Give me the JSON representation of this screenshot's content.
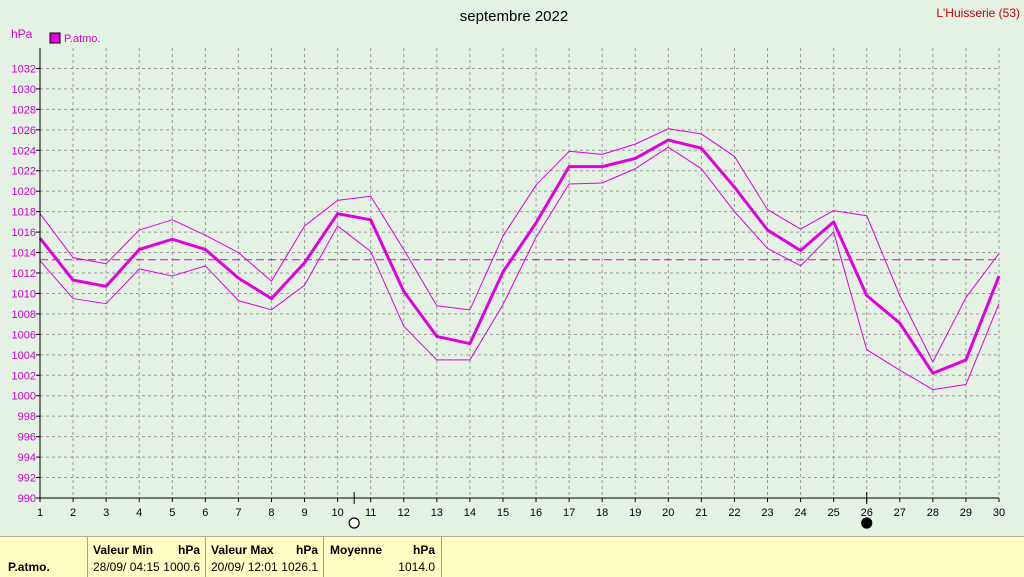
{
  "chart_data": {
    "type": "line",
    "title": "septembre 2022",
    "station": "L'Huisserie (53)",
    "ylabel": "hPa",
    "legend": "P.atmo.",
    "legend_position": "top-left",
    "grid": true,
    "ylim": [
      990,
      1034
    ],
    "yticks": [
      990,
      992,
      994,
      996,
      998,
      1000,
      1002,
      1004,
      1006,
      1008,
      1010,
      1012,
      1014,
      1016,
      1018,
      1020,
      1022,
      1024,
      1026,
      1028,
      1030,
      1032
    ],
    "x": [
      1,
      2,
      3,
      4,
      5,
      6,
      7,
      8,
      9,
      10,
      11,
      12,
      13,
      14,
      15,
      16,
      17,
      18,
      19,
      20,
      21,
      22,
      23,
      24,
      25,
      26,
      27,
      28,
      29,
      30
    ],
    "series": [
      {
        "role": "mean",
        "values": [
          1015.4,
          1011.3,
          1010.7,
          1014.3,
          1015.3,
          1014.3,
          1011.5,
          1009.5,
          1013.0,
          1017.8,
          1017.2,
          1010.2,
          1005.8,
          1005.1,
          1012.1,
          1016.9,
          1022.4,
          1022.4,
          1023.2,
          1025.0,
          1024.2,
          1020.4,
          1016.2,
          1014.2,
          1017.0,
          1009.8,
          1007.1,
          1002.2,
          1003.5,
          1011.7
        ]
      },
      {
        "role": "max",
        "values": [
          1017.8,
          1013.5,
          1012.9,
          1016.2,
          1017.2,
          1015.7,
          1014.0,
          1011.2,
          1016.6,
          1019.1,
          1019.5,
          1014.3,
          1008.8,
          1008.4,
          1015.6,
          1020.6,
          1023.9,
          1023.6,
          1024.6,
          1026.1,
          1025.6,
          1023.4,
          1018.2,
          1016.3,
          1018.1,
          1017.6,
          1009.8,
          1003.3,
          1009.6,
          1013.9
        ]
      },
      {
        "role": "min",
        "values": [
          1013.2,
          1009.5,
          1009.0,
          1012.4,
          1011.7,
          1012.7,
          1009.3,
          1008.4,
          1010.8,
          1016.6,
          1014.1,
          1006.8,
          1003.5,
          1003.5,
          1008.9,
          1015.5,
          1020.7,
          1020.8,
          1022.2,
          1024.3,
          1022.2,
          1018.0,
          1014.4,
          1012.7,
          1016.0,
          1004.5,
          1002.5,
          1000.6,
          1001.1,
          1009.0
        ]
      }
    ],
    "average_line": 1013.3,
    "moon_phases": [
      {
        "x": 10.5,
        "phase": "full",
        "icon": "full-moon-icon"
      },
      {
        "x": 26,
        "phase": "new",
        "icon": "new-moon-icon"
      }
    ],
    "colors": {
      "line": "#e000e0",
      "label": "#cc00cc",
      "station": "#c00000",
      "grid": "#9a9a9a",
      "axis": "#000000"
    }
  },
  "stats": {
    "row_label": "P.atmo.",
    "min": {
      "label": "Valeur Min",
      "unit": "hPa",
      "datetime": "28/09/  04:15",
      "value": "1000.6"
    },
    "max": {
      "label": "Valeur Max",
      "unit": "hPa",
      "datetime": "20/09/  12:01",
      "value": "1026.1"
    },
    "mean": {
      "label": "Moyenne",
      "unit": "hPa",
      "value": "1014.0"
    }
  }
}
